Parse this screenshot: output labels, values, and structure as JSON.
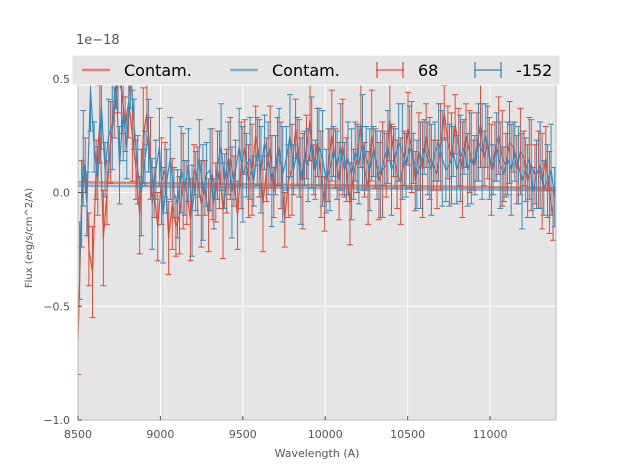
{
  "chart_data": {
    "type": "line",
    "xlabel": "Wavelength (A)",
    "ylabel": "Flux (erg/s/cm^2/A)",
    "offset_text": "1e−18",
    "xlim": [
      8500,
      11400
    ],
    "ylim": [
      -1.0,
      0.6
    ],
    "y_scale_factor": "1e-18",
    "x_ticks": [
      8500,
      9000,
      9500,
      10000,
      10500,
      11000
    ],
    "x_tick_labels": [
      "8500",
      "9000",
      "9500",
      "10000",
      "10500",
      "11000"
    ],
    "y_ticks": [
      -1.0,
      -0.5,
      0.0,
      0.5
    ],
    "y_tick_labels": [
      "−1.0",
      "−0.5",
      "0.0",
      "0.5"
    ],
    "grid": true,
    "legend_position": "top",
    "colors": {
      "red": "#e24a33",
      "blue": "#348abd",
      "contam_red": "#e8816b",
      "contam_blue": "#7fb1d1",
      "axes_bg": "#e5e5e5",
      "grid": "#ffffff",
      "tick_text": "#555555"
    },
    "legend": [
      {
        "label": "Contam.",
        "kind": "line",
        "color": "#e8816b"
      },
      {
        "label": "Contam.",
        "kind": "line",
        "color": "#7fb1d1"
      },
      {
        "label": "68",
        "kind": "errorbar",
        "color": "#e24a33"
      },
      {
        "label": "-152",
        "kind": "errorbar",
        "color": "#348abd"
      }
    ],
    "series": [
      {
        "name": "Contam.",
        "kind": "contamination",
        "color": "#e8816b",
        "x": [
          8500,
          11400
        ],
        "y": [
          0.045,
          0.02
        ]
      },
      {
        "name": "Contam.",
        "kind": "contamination",
        "color": "#7fb1d1",
        "x": [
          8500,
          11400
        ],
        "y": [
          0.03,
          0.01
        ]
      },
      {
        "name": "68",
        "kind": "spectrum",
        "color": "#e24a33",
        "x_start": 8500,
        "x_step": 22,
        "y": [
          -0.65,
          -0.05,
          0.12,
          -0.25,
          -0.35,
          0.1,
          0.3,
          -0.2,
          0.0,
          0.22,
          0.35,
          0.5,
          0.45,
          0.3,
          0.4,
          0.25,
          0.1,
          -0.1,
          0.25,
          0.35,
          0.15,
          0.0,
          -0.15,
          0.05,
          0.1,
          -0.2,
          -0.05,
          -0.15,
          -0.1,
          0.05,
          0.0,
          -0.12,
          0.1,
          0.05,
          -0.05,
          0.02,
          -0.1,
          0.08,
          0.0,
          0.1,
          -0.08,
          0.05,
          0.15,
          0.05,
          -0.1,
          0.12,
          0.2,
          0.05,
          0.1,
          0.25,
          0.15,
          -0.05,
          0.1,
          0.2,
          0.0,
          0.18,
          0.12,
          -0.12,
          0.05,
          0.1,
          0.28,
          0.15,
          0.05,
          0.2,
          0.32,
          0.1,
          0.22,
          0.08,
          -0.05,
          0.12,
          0.25,
          0.15,
          0.05,
          0.2,
          0.1,
          -0.05,
          0.08,
          0.15,
          0.3,
          0.1,
          0.02,
          0.25,
          0.15,
          0.05,
          0.1,
          0.12,
          0.32,
          0.18,
          0.08,
          0.05,
          0.15,
          0.28,
          0.2,
          0.05,
          0.18,
          0.1,
          0.25,
          0.15,
          0.12,
          0.08,
          0.2,
          0.35,
          0.22,
          0.15,
          0.3,
          0.2,
          0.1,
          0.25,
          0.18,
          0.12,
          0.2,
          0.3,
          0.15,
          0.22,
          0.1,
          0.18,
          0.25,
          0.15,
          0.12,
          0.22,
          0.2,
          0.1,
          0.18,
          0.15,
          0.05,
          0.12,
          0.08,
          0.1,
          0.05,
          0.15,
          0.0,
          -0.1
        ]
      },
      {
        "name": "-152",
        "kind": "spectrum",
        "color": "#348abd",
        "x_start": 8510,
        "x_step": 22,
        "y": [
          -0.3,
          0.15,
          -0.05,
          0.45,
          0.2,
          0.05,
          0.38,
          0.1,
          0.25,
          0.3,
          0.5,
          0.12,
          0.35,
          0.2,
          0.55,
          0.3,
          0.1,
          0.0,
          0.15,
          0.25,
          -0.05,
          0.1,
          0.2,
          -0.1,
          0.05,
          0.15,
          0.0,
          -0.05,
          0.1,
          0.02,
          0.12,
          -0.08,
          0.05,
          0.15,
          0.0,
          0.08,
          0.1,
          -0.05,
          0.12,
          0.2,
          0.05,
          0.15,
          0.0,
          0.1,
          0.2,
          0.08,
          0.12,
          0.15,
          0.05,
          0.18,
          0.1,
          0.22,
          0.15,
          0.05,
          0.12,
          0.2,
          0.08,
          0.15,
          0.25,
          0.1,
          0.18,
          0.05,
          0.15,
          0.12,
          0.22,
          0.1,
          0.2,
          0.15,
          0.05,
          0.1,
          0.18,
          0.12,
          0.2,
          0.1,
          0.15,
          0.08,
          0.18,
          0.12,
          0.22,
          0.15,
          0.1,
          0.18,
          0.12,
          0.08,
          0.15,
          0.2,
          0.1,
          0.15,
          0.22,
          0.18,
          0.12,
          0.2,
          0.15,
          0.08,
          0.12,
          0.2,
          0.15,
          0.1,
          0.18,
          0.22,
          0.15,
          0.1,
          0.12,
          0.18,
          0.1,
          0.15,
          0.2,
          0.1,
          0.15,
          0.12,
          0.22,
          0.18,
          0.25,
          0.15,
          0.1,
          0.2,
          0.12,
          0.08,
          0.15,
          0.1,
          0.18,
          0.12,
          0.05,
          0.1,
          0.15,
          0.0,
          0.08,
          0.12,
          0.02,
          0.05,
          0.1,
          -0.02
        ]
      }
    ]
  }
}
